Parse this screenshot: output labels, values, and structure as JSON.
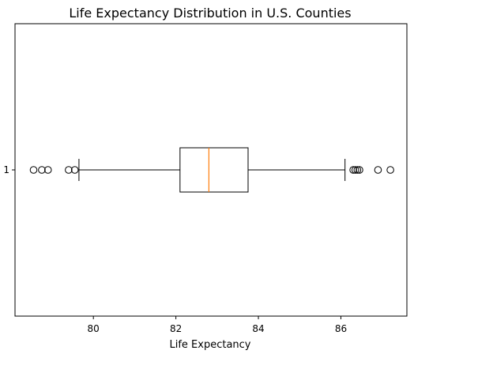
{
  "chart_data": {
    "type": "boxplot",
    "title": "Life Expectancy Distribution in U.S. Counties",
    "xlabel": "Life Expectancy",
    "ylabel": "",
    "orientation": "horizontal",
    "xlim": [
      78.1,
      87.6
    ],
    "x_ticks": [
      80,
      82,
      84,
      86
    ],
    "y_ticks": [
      "1"
    ],
    "grid": false,
    "box": {
      "category": "1",
      "whisker_low": 79.65,
      "q1": 82.1,
      "median": 82.8,
      "q3": 83.75,
      "whisker_high": 86.1,
      "outliers": [
        78.55,
        78.75,
        78.9,
        79.4,
        79.55,
        86.3,
        86.35,
        86.4,
        86.45,
        86.9,
        87.2
      ]
    },
    "colors": {
      "median": "#ff7f0e",
      "box": "#000000",
      "background": "#ffffff"
    }
  }
}
